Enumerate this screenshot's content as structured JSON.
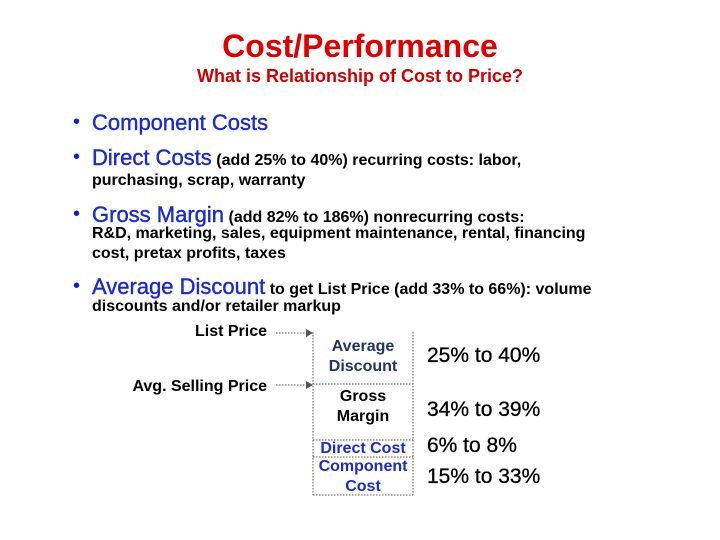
{
  "title": "Cost/Performance",
  "subtitle": "What is Relationship of Cost to Price?",
  "bullets": [
    {
      "lead": "Component Costs"
    },
    {
      "lead": "Direct Costs",
      "detail": "(add 25% to 40%) recurring costs: labor,",
      "more": [
        "purchasing, scrap, warranty"
      ]
    },
    {
      "lead": "Gross Margin",
      "detail": "(add 82% to 186%) nonrecurring costs:",
      "more": [
        "R&D, marketing, sales, equipment maintenance, rental, financing",
        "cost, pretax profits, taxes"
      ]
    },
    {
      "lead": "Average Discount",
      "detail": "to get List Price (add 33% to 66%): volume",
      "more": [
        "discounts and/or retailer markup"
      ]
    }
  ],
  "diagram": {
    "price_labels": [
      "List Price",
      "Avg. Selling Price"
    ],
    "segments": [
      {
        "label": "Average Discount",
        "range": "25% to 40%"
      },
      {
        "label": "Gross Margin",
        "range": "34% to 39%"
      },
      {
        "label": "Direct Cost",
        "range": "6% to 8%"
      },
      {
        "label": "Component Cost",
        "range": "15% to 33%"
      }
    ]
  }
}
